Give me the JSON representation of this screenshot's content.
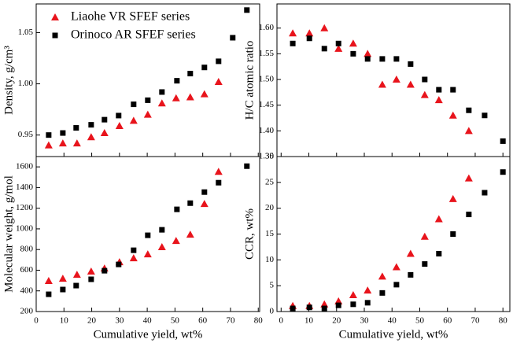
{
  "chart_data": [
    {
      "type": "scatter",
      "ylabel": "Density, g/cm³",
      "xlim": [
        0,
        80.5
      ],
      "xticks": [
        0,
        10,
        20,
        30,
        40,
        50,
        60,
        70,
        80
      ],
      "xtick_labels": false,
      "ylim": [
        0.929,
        1.078
      ],
      "yticks": [
        0.95,
        {
          "value": 1.0,
          "label": "1.00"
        },
        1.05
      ],
      "legend": "upper left",
      "series": [
        {
          "name": "Liaohe VR SFEF series",
          "color": "#e8141c",
          "marker": "triangle",
          "x": [
            4.5,
            9.6,
            14.7,
            19.8,
            24.6,
            30,
            35.1,
            40.2,
            45.3,
            50.4,
            55.5,
            60.6,
            65.7
          ],
          "values": [
            0.94,
            0.942,
            0.942,
            0.948,
            0.952,
            0.959,
            0.964,
            0.97,
            0.981,
            0.986,
            0.987,
            0.99,
            1.002
          ]
        },
        {
          "name": "Orinoco AR SFEF series",
          "color": "#000000",
          "marker": "square",
          "x": [
            4.5,
            9.6,
            14.4,
            19.8,
            24.6,
            29.7,
            35.1,
            40.2,
            45.3,
            50.7,
            55.5,
            60.6,
            65.7,
            70.8,
            75.9
          ],
          "values": [
            0.95,
            0.952,
            0.957,
            0.96,
            0.965,
            0.969,
            0.98,
            0.984,
            0.992,
            1.003,
            1.01,
            1.016,
            1.022,
            1.045,
            1.072
          ]
        }
      ]
    },
    {
      "type": "scatter",
      "ylabel": "H/C atomic ratio",
      "xlim": [
        -1.5,
        82.5
      ],
      "xticks": [
        0,
        10,
        20,
        30,
        40,
        50,
        60,
        70,
        80
      ],
      "xtick_labels": false,
      "ylim": [
        1.35,
        1.647
      ],
      "yticks": [
        1.35,
        {
          "value": 1.4,
          "label": "1.40"
        },
        1.45,
        {
          "value": 1.5,
          "label": "1.50"
        },
        1.55,
        {
          "value": 1.6,
          "label": "1.60"
        }
      ],
      "series": [
        {
          "color": "#e8141c",
          "marker": "triangle",
          "x": [
            4.2,
            10.2,
            15.6,
            20.7,
            26,
            31.2,
            36.5,
            41.6,
            46.7,
            51.8,
            56.9,
            62,
            67.7
          ],
          "values": [
            1.59,
            1.59,
            1.6,
            1.56,
            1.57,
            1.55,
            1.49,
            1.5,
            1.49,
            1.47,
            1.46,
            1.43,
            1.4
          ]
        },
        {
          "color": "#000000",
          "marker": "square",
          "x": [
            4.2,
            10.2,
            15.6,
            20.7,
            26,
            31.2,
            36.5,
            41.6,
            46.7,
            51.8,
            56.9,
            62,
            67.7,
            73.4,
            80
          ],
          "values": [
            1.57,
            1.58,
            1.56,
            1.57,
            1.55,
            1.54,
            1.54,
            1.54,
            1.53,
            1.5,
            1.48,
            1.48,
            1.44,
            1.43,
            1.38
          ]
        }
      ]
    },
    {
      "type": "scatter",
      "xlabel": "Cumulative yield, wt%",
      "ylabel": "Molecular weight, g/mol",
      "xlim": [
        0,
        80.5
      ],
      "xticks": [
        0,
        10,
        20,
        30,
        40,
        50,
        60,
        70,
        80
      ],
      "xtick_labels": true,
      "ylim": [
        200,
        1700
      ],
      "yticks": [
        200,
        400,
        600,
        800,
        1000,
        1200,
        1400,
        1600
      ],
      "series": [
        {
          "color": "#e8141c",
          "marker": "triangle",
          "x": [
            4.5,
            9.6,
            14.7,
            19.8,
            24.6,
            30,
            35.1,
            40.2,
            45.3,
            50.4,
            55.5,
            60.6,
            65.7
          ],
          "values": [
            497,
            519,
            557,
            588,
            618,
            679,
            717,
            755,
            824,
            884,
            945,
            1242,
            1553
          ]
        },
        {
          "color": "#000000",
          "marker": "square",
          "x": [
            4.5,
            9.6,
            14.4,
            19.8,
            24.6,
            29.7,
            35.1,
            40.2,
            45.3,
            50.7,
            55.5,
            60.6,
            65.7,
            75.9
          ],
          "values": [
            367,
            413,
            451,
            512,
            595,
            656,
            793,
            938,
            991,
            1189,
            1249,
            1356,
            1447,
            1607
          ]
        }
      ]
    },
    {
      "type": "scatter",
      "xlabel": "Cumulative yield, wt%",
      "ylabel": "CCR, wt%",
      "xlim": [
        -1.5,
        82.5
      ],
      "xticks": [
        0,
        10,
        20,
        30,
        40,
        50,
        60,
        70,
        80
      ],
      "xtick_labels": true,
      "ylim": [
        0,
        30
      ],
      "yticks": [
        0,
        5,
        10,
        15,
        20,
        25,
        30
      ],
      "series": [
        {
          "color": "#e8141c",
          "marker": "triangle",
          "x": [
            4.2,
            10.2,
            15.6,
            20.7,
            26,
            31.2,
            36.5,
            41.6,
            46.7,
            51.8,
            56.9,
            62,
            67.7
          ],
          "values": [
            1.1,
            1.1,
            1.4,
            2.0,
            3.2,
            4.1,
            6.8,
            8.6,
            11.2,
            14.5,
            17.9,
            21.8,
            25.8
          ]
        },
        {
          "color": "#000000",
          "marker": "square",
          "x": [
            4.2,
            10.2,
            15.6,
            20.7,
            26,
            31.2,
            36.5,
            41.6,
            46.7,
            51.8,
            56.9,
            62,
            67.7,
            73.4,
            80
          ],
          "values": [
            0.6,
            0.8,
            0.6,
            1.2,
            1.4,
            1.7,
            3.6,
            5.2,
            7.1,
            9.2,
            11.2,
            15.0,
            18.8,
            23.0,
            27.0
          ]
        }
      ]
    }
  ]
}
